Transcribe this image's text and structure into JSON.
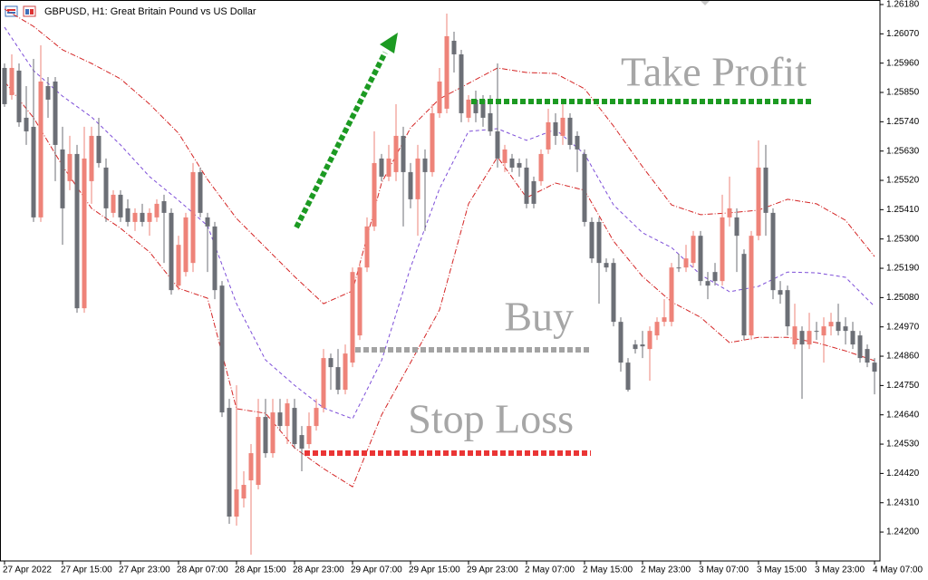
{
  "chart_data": {
    "type": "candlestick",
    "title": "GBPUSD, H1:  Great Britain Pound vs US Dollar",
    "categories": [
      "27 Apr 2022",
      null,
      null,
      null,
      null,
      null,
      null,
      null,
      "27 Apr 15:00",
      null,
      null,
      null,
      null,
      null,
      null,
      null,
      "27 Apr 23:00",
      null,
      null,
      null,
      null,
      null,
      null,
      null,
      "28 Apr 07:00",
      null,
      null,
      null,
      null,
      null,
      null,
      null,
      "28 Apr 15:00",
      null,
      null,
      null,
      null,
      null,
      null,
      null,
      "28 Apr 23:00",
      null,
      null,
      null,
      null,
      null,
      null,
      null,
      "29 Apr 07:00",
      null,
      null,
      null,
      null,
      null,
      null,
      null,
      "29 Apr 15:00",
      null,
      null,
      null,
      null,
      null,
      null,
      null,
      "29 Apr 23:00",
      null,
      null,
      null,
      null,
      null,
      null,
      null,
      "2 May 07:00",
      null,
      null,
      null,
      null,
      null,
      null,
      null,
      "2 May 15:00",
      null,
      null,
      null,
      null,
      null,
      null,
      null,
      "2 May 23:00",
      null,
      null,
      null,
      null,
      null,
      null,
      null,
      "3 May 07:00",
      null,
      null,
      null,
      null,
      null,
      null,
      null,
      "3 May 15:00",
      null,
      null,
      null,
      null,
      null,
      null,
      null,
      "3 May 23:00",
      null,
      null,
      null,
      null,
      null,
      null,
      null,
      "4 May 07:00"
    ],
    "open": [
      1.25942,
      1.2584,
      1.25932,
      1.25755,
      1.25721,
      1.25381,
      1.25874,
      1.25891,
      1.25636,
      1.25517,
      1.25619,
      1.2504,
      1.25517,
      1.25687,
      1.25568,
      1.25398,
      1.25466,
      1.25415,
      1.25364,
      1.25398,
      1.25364,
      1.25381,
      1.25442,
      1.25398,
      1.25125,
      1.25176,
      1.2521,
      1.25551,
      1.25381,
      1.25347,
      1.25125,
      1.24666,
      1.24258,
      1.24326,
      1.24394,
      1.24377,
      1.24632,
      1.24496,
      1.24649,
      1.24598,
      1.24666,
      1.24564,
      1.2453,
      1.24598,
      1.24666,
      1.24853,
      1.24819,
      1.24734,
      1.24836,
      1.24938,
      1.25193,
      1.25347,
      1.25602,
      1.25534,
      1.25551,
      1.25687,
      1.25551,
      1.25449,
      1.25602,
      1.25551,
      1.25772,
      1.25789,
      1.26044,
      1.25993,
      1.25755,
      1.25823,
      1.25823,
      1.25772,
      1.25704,
      1.25585,
      1.25602,
      1.25585,
      1.25568,
      1.25517,
      1.25517,
      1.25636,
      1.25738,
      1.25687,
      1.25755,
      1.25687,
      1.25619,
      1.25364,
      1.25364,
      1.2521,
      1.2521,
      1.24989,
      1.24836,
      1.24904,
      1.24904,
      1.24887,
      1.24938,
      1.24989,
      1.24989,
      1.25193,
      1.25193,
      1.2521,
      1.25312,
      1.25142,
      1.25176,
      1.25142,
      1.25381,
      1.25381,
      1.25244,
      1.24938,
      1.25312,
      1.25568,
      1.25398,
      1.25108,
      1.25108,
      1.24904,
      1.24955,
      1.24904,
      1.24955,
      1.24938,
      1.24972,
      1.24989,
      1.24972,
      1.24955,
      1.24938,
      1.24887,
      1.24836
    ],
    "high": [
      1.25959,
      1.25993,
      1.25959,
      1.25874,
      1.25976,
      1.26027,
      1.25908,
      1.25908,
      1.25721,
      1.25687,
      1.25653,
      1.25721,
      1.25721,
      1.25755,
      1.25602,
      1.25483,
      1.25483,
      1.25449,
      1.25415,
      1.25432,
      1.25415,
      1.25449,
      1.25466,
      1.25415,
      1.25312,
      1.25398,
      1.25585,
      1.25568,
      1.25398,
      1.25364,
      1.25142,
      1.247,
      1.24751,
      1.24428,
      1.2453,
      1.247,
      1.247,
      1.247,
      1.247,
      1.247,
      1.247,
      1.24598,
      1.24649,
      1.247,
      1.24887,
      1.2487,
      1.24887,
      1.24904,
      1.25193,
      1.2521,
      1.25381,
      1.25704,
      1.25619,
      1.25653,
      1.25806,
      1.25721,
      1.25585,
      1.25653,
      1.25636,
      1.25806,
      1.25942,
      1.26146,
      1.26078,
      1.2601,
      1.2584,
      1.25857,
      1.2584,
      1.2584,
      1.25959,
      1.25653,
      1.25619,
      1.25602,
      1.25602,
      1.25534,
      1.25636,
      1.25789,
      1.25772,
      1.25806,
      1.25772,
      1.25704,
      1.25636,
      1.25381,
      1.25381,
      1.25227,
      1.25227,
      1.25006,
      1.24853,
      1.24921,
      1.24955,
      1.24972,
      1.25006,
      1.25074,
      1.2521,
      1.25244,
      1.25278,
      1.2533,
      1.2533,
      1.25176,
      1.2521,
      1.25466,
      1.25534,
      1.25415,
      1.25261,
      1.2533,
      1.2567,
      1.25653,
      1.25415,
      1.25142,
      1.25125,
      1.25057,
      1.24972,
      1.25023,
      1.24989,
      1.25006,
      1.25023,
      1.25057,
      1.25006,
      1.24989,
      1.24955,
      1.24904,
      1.24853
    ],
    "low": [
      1.25796,
      1.25823,
      1.25721,
      1.25653,
      1.25364,
      1.25364,
      1.25755,
      1.25517,
      1.25278,
      1.25483,
      1.25023,
      1.25023,
      1.25432,
      1.25568,
      1.25364,
      1.25381,
      1.25364,
      1.25347,
      1.2533,
      1.25347,
      1.25312,
      1.25364,
      1.2521,
      1.25091,
      1.25108,
      1.25159,
      1.25176,
      1.25381,
      1.25176,
      1.25074,
      1.24632,
      1.24231,
      1.24224,
      1.24292,
      1.24115,
      1.2436,
      1.24479,
      1.24479,
      1.24581,
      1.2453,
      1.24513,
      1.24428,
      1.24513,
      1.24581,
      1.24649,
      1.24734,
      1.24717,
      1.24717,
      1.24819,
      1.24921,
      1.25176,
      1.2533,
      1.25517,
      1.25517,
      1.25517,
      1.25347,
      1.25415,
      1.25312,
      1.2533,
      1.25534,
      1.25755,
      1.25772,
      1.25925,
      1.25738,
      1.25738,
      1.25738,
      1.25721,
      1.25687,
      1.25568,
      1.25551,
      1.25551,
      1.25534,
      1.25415,
      1.25415,
      1.255,
      1.25619,
      1.25653,
      1.25653,
      1.25636,
      1.25551,
      1.25347,
      1.2521,
      1.25057,
      1.25176,
      1.24972,
      1.24802,
      1.24727,
      1.2487,
      1.24853,
      1.24768,
      1.24921,
      1.24972,
      1.24972,
      1.25176,
      1.25176,
      1.25193,
      1.25125,
      1.25074,
      1.25125,
      1.25125,
      1.25347,
      1.25176,
      1.24921,
      1.24921,
      1.25295,
      1.25312,
      1.25074,
      1.25057,
      1.24938,
      1.24887,
      1.247,
      1.24887,
      1.24921,
      1.24836,
      1.24938,
      1.24938,
      1.24904,
      1.24887,
      1.24836,
      1.24819,
      1.24717
    ],
    "close": [
      1.25806,
      1.25942,
      1.25738,
      1.25704,
      1.25381,
      1.25891,
      1.25823,
      1.25653,
      1.25415,
      1.25619,
      1.2504,
      1.25602,
      1.25687,
      1.25585,
      1.25415,
      1.25466,
      1.25381,
      1.25364,
      1.25398,
      1.25364,
      1.25398,
      1.25432,
      1.25398,
      1.25108,
      1.25278,
      1.25381,
      1.25551,
      1.25398,
      1.25347,
      1.25108,
      1.24649,
      1.24258,
      1.2436,
      1.24377,
      1.24496,
      1.24632,
      1.24496,
      1.24649,
      1.24598,
      1.24683,
      1.2453,
      1.24513,
      1.24598,
      1.24666,
      1.24853,
      1.24819,
      1.24734,
      1.2487,
      1.25176,
      1.25193,
      1.25347,
      1.25585,
      1.25534,
      1.25602,
      1.25687,
      1.25551,
      1.25449,
      1.25602,
      1.25551,
      1.25772,
      1.25891,
      1.26061,
      1.25993,
      1.25772,
      1.25823,
      1.25772,
      1.25755,
      1.25704,
      1.25602,
      1.25636,
      1.25568,
      1.25568,
      1.25432,
      1.25432,
      1.25619,
      1.25738,
      1.25687,
      1.25755,
      1.25653,
      1.25636,
      1.25364,
      1.25227,
      1.2521,
      1.25193,
      1.24989,
      1.24836,
      1.24734,
      1.24887,
      1.24897,
      1.24955,
      1.24989,
      1.25006,
      1.25193,
      1.25193,
      1.25227,
      1.25312,
      1.25142,
      1.25125,
      1.25142,
      1.25381,
      1.25415,
      1.25312,
      1.24938,
      1.25312,
      1.25568,
      1.25398,
      1.25108,
      1.25091,
      1.24972,
      1.24972,
      1.24904,
      1.24955,
      1.24955,
      1.24972,
      1.24989,
      1.24955,
      1.24955,
      1.24904,
      1.24853,
      1.24836,
      1.24802
    ],
    "up_color": "#ee8379",
    "down_color": "#6c6f76",
    "band_x": [
      0,
      4,
      8,
      12,
      16,
      20,
      24,
      28,
      32,
      36,
      40,
      44,
      48,
      52,
      56,
      60,
      64,
      68,
      72,
      76,
      80,
      84,
      88,
      92,
      96,
      100,
      104,
      108,
      112,
      116,
      120
    ],
    "bands": [
      {
        "color": "#d42525",
        "values": [
          1.26163,
          1.26098,
          1.2601,
          1.25959,
          1.25901,
          1.25806,
          1.25697,
          1.25523,
          1.25377,
          1.25268,
          1.25159,
          1.25057,
          1.25105,
          1.2551,
          1.25717,
          1.25826,
          1.25884,
          1.25942,
          1.25925,
          1.25921,
          1.25864,
          1.25724,
          1.25571,
          1.25428,
          1.25391,
          1.25398,
          1.25408,
          1.25449,
          1.25432,
          1.2537,
          1.25234
        ]
      },
      {
        "color": "#7d4ed8",
        "values": [
          1.26095,
          1.25932,
          1.25836,
          1.25758,
          1.25653,
          1.25534,
          1.25445,
          1.2535,
          1.25057,
          1.24846,
          1.24751,
          1.24666,
          1.24625,
          1.24843,
          1.25193,
          1.25489,
          1.25704,
          1.25714,
          1.2567,
          1.25711,
          1.25619,
          1.25428,
          1.25323,
          1.25268,
          1.25166,
          1.25102,
          1.25122,
          1.25176,
          1.25173,
          1.25156,
          1.25047
        ]
      },
      {
        "color": "#d42525",
        "values": [
          1.25891,
          1.25755,
          1.25574,
          1.25415,
          1.2534,
          1.25251,
          1.25115,
          1.25078,
          1.24663,
          1.24646,
          1.24516,
          1.24438,
          1.2437,
          1.24639,
          1.24836,
          1.25034,
          1.25432,
          1.25608,
          1.25455,
          1.2551,
          1.25483,
          1.25292,
          1.25159,
          1.25064,
          1.25006,
          1.24911,
          1.24931,
          1.24931,
          1.24911,
          1.2488,
          1.24843
        ]
      }
    ],
    "levels": [
      {
        "label": "Take Profit",
        "value": 1.25816,
        "color": "#1c9a22"
      },
      {
        "label": "Buy",
        "value": 1.24884,
        "color": "#a3a3a3"
      },
      {
        "label": "Stop Loss",
        "value": 1.24496,
        "color": "#ea3535"
      }
    ],
    "ylim": [
      1.24088,
      1.26197
    ],
    "yticks": [
      {
        "value": 1.2618,
        "label": "1.26180"
      },
      {
        "value": 1.2607,
        "label": "1.26070"
      },
      {
        "value": 1.2596,
        "label": "1.25960"
      },
      {
        "value": 1.2585,
        "label": "1.25850"
      },
      {
        "value": 1.2574,
        "label": "1.25740"
      },
      {
        "value": 1.2563,
        "label": "1.25630"
      },
      {
        "value": 1.2552,
        "label": "1.25520"
      },
      {
        "value": 1.2541,
        "label": "1.25410"
      },
      {
        "value": 1.253,
        "label": "1.25300"
      },
      {
        "value": 1.2519,
        "label": "1.25190"
      },
      {
        "value": 1.2508,
        "label": "1.25080"
      },
      {
        "value": 1.2497,
        "label": "1.24970"
      },
      {
        "value": 1.2486,
        "label": "1.24860"
      },
      {
        "value": 1.2475,
        "label": "1.24750"
      },
      {
        "value": 1.2464,
        "label": "1.24640"
      },
      {
        "value": 1.2453,
        "label": "1.24530"
      },
      {
        "value": 1.2442,
        "label": "1.24420"
      },
      {
        "value": 1.2431,
        "label": "1.24310"
      },
      {
        "value": 1.242,
        "label": "1.24200"
      }
    ],
    "grid": false
  }
}
